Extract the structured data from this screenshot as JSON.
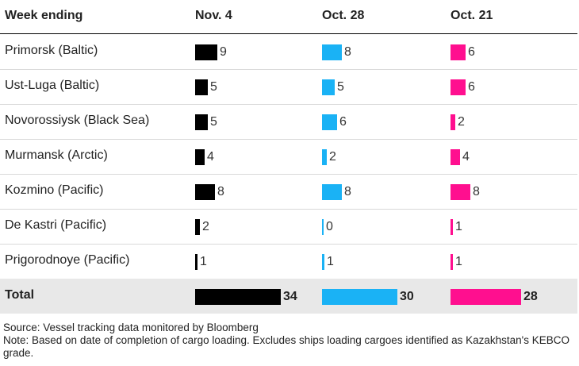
{
  "header": {
    "row_label": "Week ending",
    "columns": [
      "Nov. 4",
      "Oct. 28",
      "Oct. 21"
    ]
  },
  "colors": {
    "Nov. 4": "#000000",
    "Oct. 28": "#1ab2f5",
    "Oct. 21": "#ff0f8f",
    "total_row_bg": "#e8e8e8"
  },
  "chart_data": {
    "type": "table",
    "categories": [
      "Primorsk (Baltic)",
      "Ust-Luga (Baltic)",
      "Novorossiysk (Black Sea)",
      "Murmansk (Arctic)",
      "Kozmino (Pacific)",
      "De Kastri (Pacific)",
      "Prigorodnoye (Pacific)"
    ],
    "series": [
      {
        "name": "Nov. 4",
        "values": [
          9,
          5,
          5,
          4,
          8,
          2,
          1
        ]
      },
      {
        "name": "Oct. 28",
        "values": [
          8,
          5,
          6,
          2,
          8,
          0,
          1
        ]
      },
      {
        "name": "Oct. 21",
        "values": [
          6,
          6,
          2,
          4,
          8,
          1,
          1
        ]
      }
    ],
    "total": {
      "label": "Total",
      "values": [
        34,
        30,
        28
      ]
    }
  },
  "footer": {
    "source": "Source: Vessel tracking data monitored by Bloomberg",
    "note": "Note: Based on date of completion of cargo loading. Excludes ships loading cargoes identified as Kazakhstan's KEBCO grade."
  }
}
